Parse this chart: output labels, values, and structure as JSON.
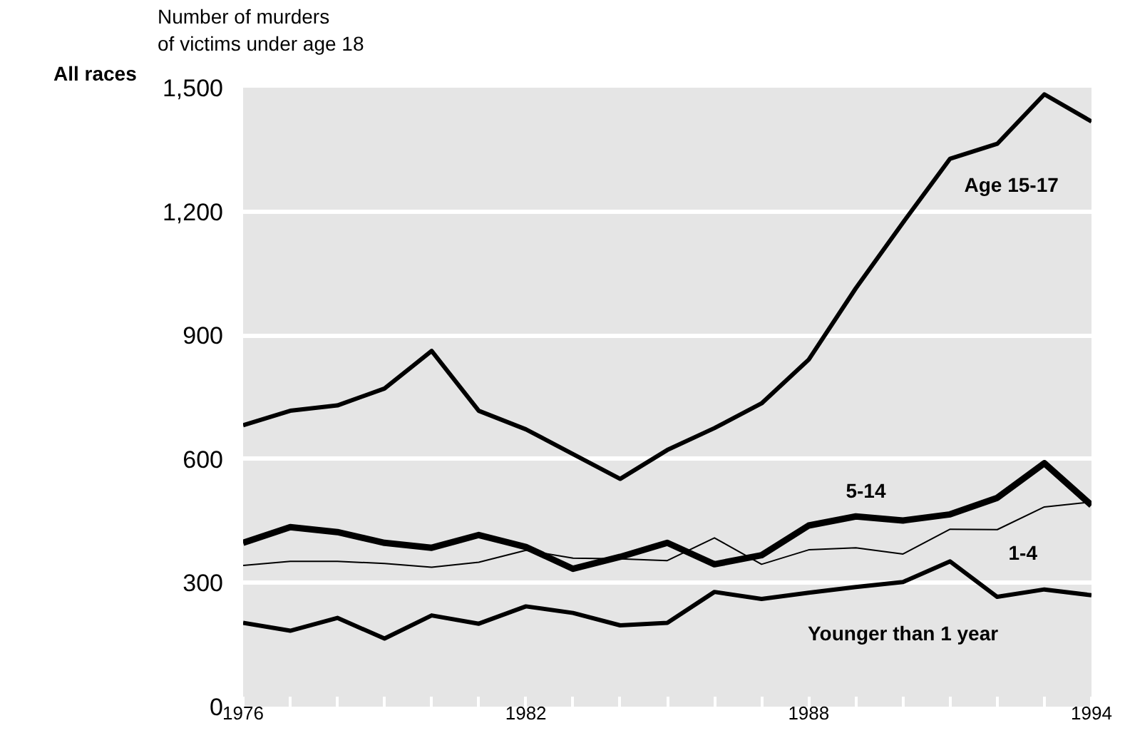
{
  "chart_data": {
    "type": "line",
    "subtitle": "All races",
    "ylabel": "Number of murders\nof victims under age 18",
    "x": [
      1976,
      1977,
      1978,
      1979,
      1980,
      1981,
      1982,
      1983,
      1984,
      1985,
      1986,
      1987,
      1988,
      1989,
      1990,
      1991,
      1992,
      1993,
      1994
    ],
    "series": [
      {
        "name": "Age 15-17",
        "color": "#000000",
        "values": [
          682,
          717,
          730,
          771,
          862,
          717,
          672,
          612,
          552,
          622,
          675,
          735,
          841,
          1014,
          1173,
          1328,
          1364,
          1484,
          1418
        ]
      },
      {
        "name": "5-14",
        "color": "#000000",
        "values": [
          397,
          435,
          423,
          397,
          385,
          416,
          387,
          334,
          363,
          397,
          345,
          367,
          439,
          461,
          451,
          466,
          506,
          590,
          488
        ]
      },
      {
        "name": "1-4",
        "color": "#000000",
        "values": [
          342,
          352,
          352,
          347,
          338,
          350,
          379,
          360,
          358,
          354,
          409,
          345,
          380,
          385,
          370,
          430,
          429,
          484,
          496
        ]
      },
      {
        "name": "Younger than 1 year",
        "color": "#000000",
        "values": [
          203,
          184,
          215,
          165,
          221,
          201,
          243,
          227,
          197,
          203,
          278,
          261,
          276,
          290,
          302,
          352,
          266,
          284,
          270
        ]
      }
    ],
    "xlim": [
      1976,
      1994
    ],
    "xticks": [
      1976,
      {
        "value": 1977,
        "label": null
      },
      {
        "value": 1978,
        "label": null
      },
      {
        "value": 1979,
        "label": null
      },
      {
        "value": 1980,
        "label": null
      },
      {
        "value": 1981,
        "label": null
      },
      1982,
      {
        "value": 1983,
        "label": null
      },
      {
        "value": 1984,
        "label": null
      },
      {
        "value": 1985,
        "label": null
      },
      {
        "value": 1986,
        "label": null
      },
      {
        "value": 1987,
        "label": null
      },
      1988,
      {
        "value": 1989,
        "label": null
      },
      {
        "value": 1990,
        "label": null
      },
      {
        "value": 1991,
        "label": null
      },
      {
        "value": 1992,
        "label": null
      },
      {
        "value": 1993,
        "label": null
      },
      1994
    ],
    "ylim": [
      0,
      1500
    ],
    "yticks": [
      0,
      300,
      600,
      900,
      {
        "value": 1200,
        "label": "1,200"
      },
      {
        "value": 1500,
        "label": "1,500"
      }
    ],
    "grid": "y",
    "legend": false,
    "marker": "none",
    "line_style": "solid"
  }
}
